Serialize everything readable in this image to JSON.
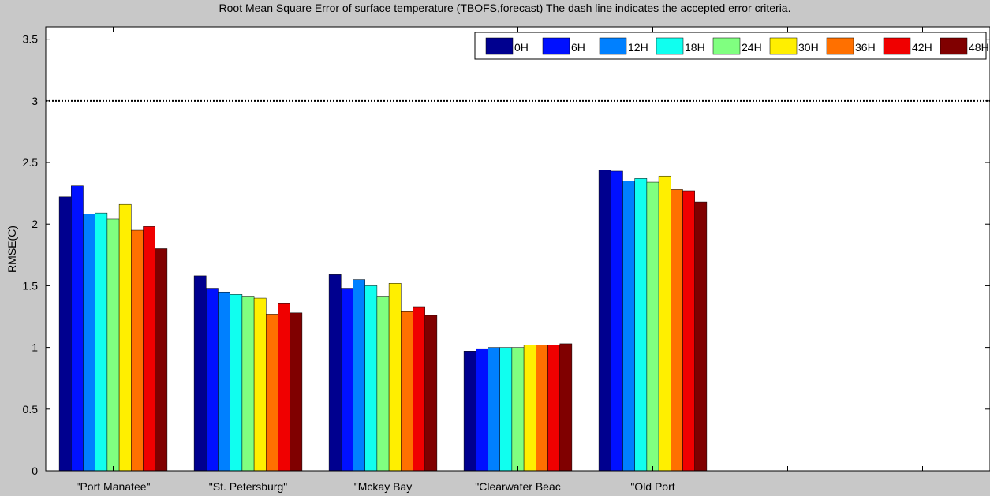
{
  "chart_data": {
    "type": "bar",
    "title": "Root Mean Square Error of surface temperature  (TBOFS,forecast)   The dash line indicates the accepted error criteria.",
    "xlabel": "",
    "ylabel": "RMSE(C)",
    "ylim": [
      0,
      3.6
    ],
    "yticks": [
      "0",
      "0.5",
      "1",
      "1.5",
      "2",
      "2.5",
      "3",
      "3.5"
    ],
    "xlim": [
      0.5,
      7.5
    ],
    "criteria_line": 3.0,
    "legend_position": "top-right",
    "grid": false,
    "categories": [
      "\"Port Manatee\"",
      "\"St. Petersburg\"",
      "\"Mckay Bay",
      "\"Clearwater Beac",
      "\"Old Port"
    ],
    "series": [
      {
        "name": "0H",
        "color": "#00008f",
        "values": [
          2.22,
          1.58,
          1.59,
          0.97,
          2.44
        ]
      },
      {
        "name": "6H",
        "color": "#0010ff",
        "values": [
          2.31,
          1.48,
          1.48,
          0.99,
          2.43
        ]
      },
      {
        "name": "12H",
        "color": "#0080ff",
        "values": [
          2.08,
          1.45,
          1.55,
          1.0,
          2.35
        ]
      },
      {
        "name": "18H",
        "color": "#10ffef",
        "values": [
          2.09,
          1.43,
          1.5,
          1.0,
          2.37
        ]
      },
      {
        "name": "24H",
        "color": "#80ff80",
        "values": [
          2.04,
          1.41,
          1.41,
          1.0,
          2.34
        ]
      },
      {
        "name": "30H",
        "color": "#ffef00",
        "values": [
          2.16,
          1.4,
          1.52,
          1.02,
          2.39
        ]
      },
      {
        "name": "36H",
        "color": "#ff7000",
        "values": [
          1.95,
          1.27,
          1.29,
          1.02,
          2.28
        ]
      },
      {
        "name": "42H",
        "color": "#f00000",
        "values": [
          1.98,
          1.36,
          1.33,
          1.02,
          2.27
        ]
      },
      {
        "name": "48H",
        "color": "#800000",
        "values": [
          1.8,
          1.28,
          1.26,
          1.03,
          2.18
        ]
      }
    ]
  }
}
